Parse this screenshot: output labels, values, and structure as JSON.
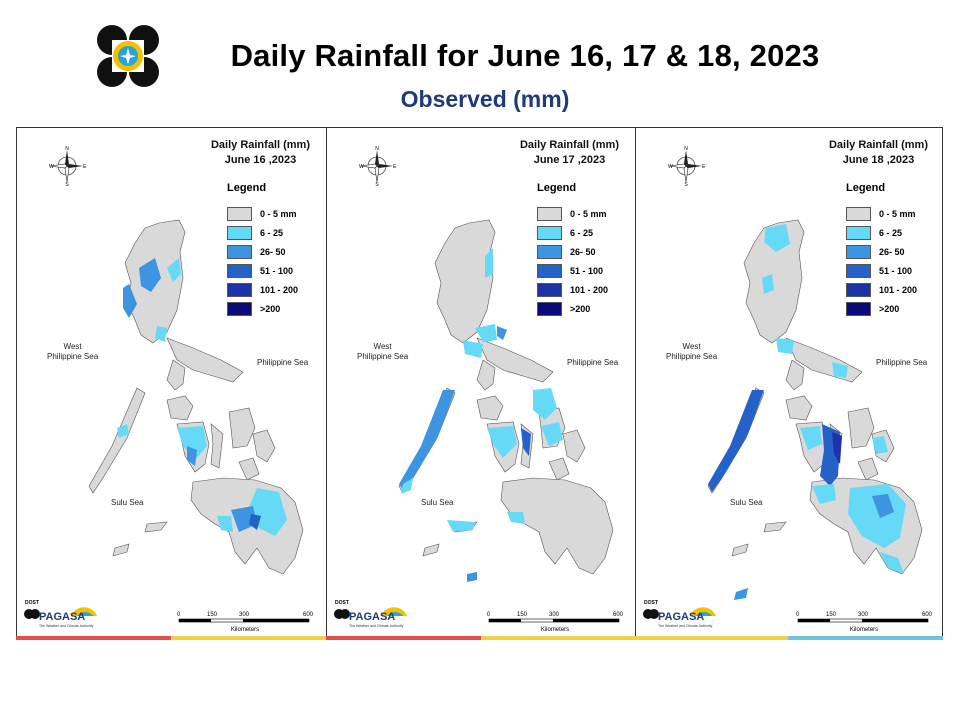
{
  "header": {
    "title": "Daily Rainfall for June 16, 17 & 18, 2023",
    "subtitle": "Observed (mm)"
  },
  "panels": [
    {
      "title_line1": "Daily Rainfall (mm)",
      "title_line2": "June 16 ,2023"
    },
    {
      "title_line1": "Daily Rainfall (mm)",
      "title_line2": "June 17 ,2023"
    },
    {
      "title_line1": "Daily Rainfall (mm)",
      "title_line2": "June 18 ,2023"
    }
  ],
  "legend": {
    "title": "Legend",
    "items": [
      {
        "label": "0 - 5 mm",
        "color": "#d9d9d9"
      },
      {
        "label": "6 - 25",
        "color": "#66d9f7"
      },
      {
        "label": "26- 50",
        "color": "#3d94e0"
      },
      {
        "label": "51 - 100",
        "color": "#2461c9"
      },
      {
        "label": "101 - 200",
        "color": "#1c34a6"
      },
      {
        "label": ">200",
        "color": "#0a0a78"
      }
    ]
  },
  "seas": {
    "west": "West\nPhilippine Sea",
    "east": "Philippine Sea",
    "sulu": "Sulu Sea"
  },
  "compass": {
    "n": "N",
    "s": "S",
    "e": "E",
    "w": "W"
  },
  "scale": {
    "ticks": [
      "0",
      "150",
      "300",
      "600"
    ],
    "unit": "Kilometers"
  },
  "branding": {
    "name": "PAGASA",
    "dost": "DOST",
    "tagline": "The Weather and Climate Authority"
  },
  "colors": {
    "land": "#d9d9d9",
    "title_blue": "#1f3a78"
  }
}
